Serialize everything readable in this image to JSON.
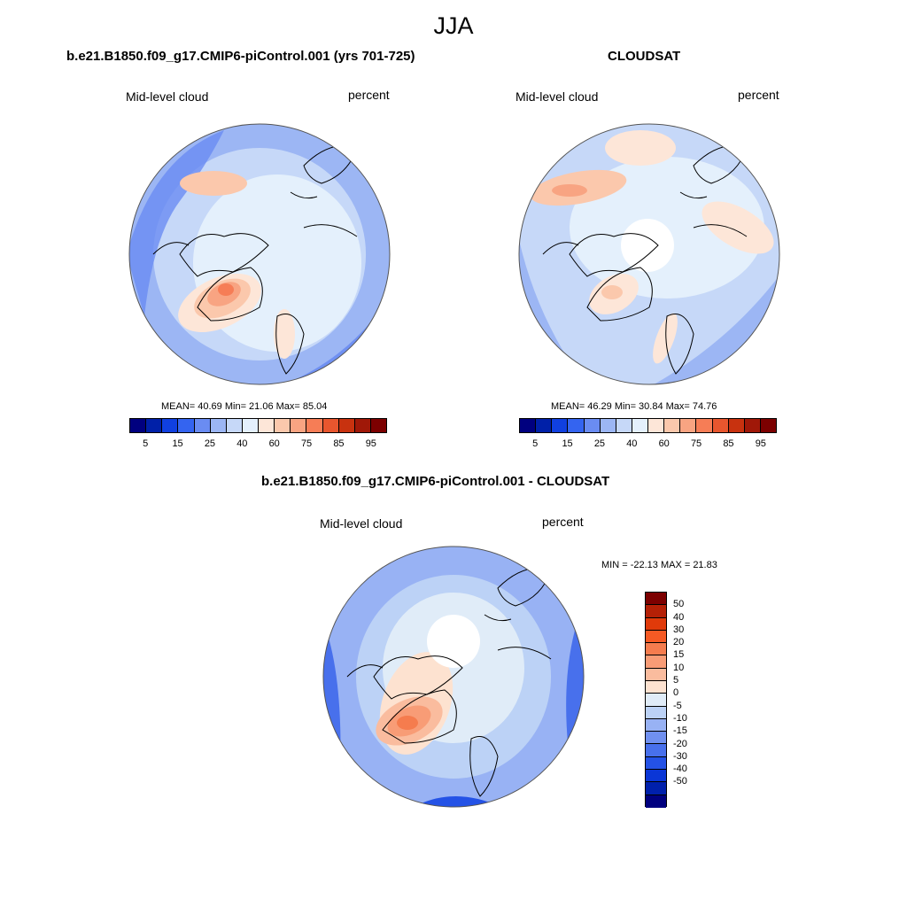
{
  "season": "JJA",
  "units_label": "percent",
  "variable_label": "Mid-level cloud",
  "panels": {
    "model": {
      "title": "b.e21.B1850.f09_g17.CMIP6-piControl.001 (yrs 701-725)",
      "variable": "Mid-level cloud",
      "units": "percent",
      "stats": "MEAN=  40.69  Min=  21.06  Max=  85.04"
    },
    "obs": {
      "title": "CLOUDSAT",
      "variable": "Mid-level cloud",
      "units": "percent",
      "stats": "MEAN=  46.29  Min=  30.84  Max=  74.76"
    },
    "diff": {
      "title": "b.e21.B1850.f09_g17.CMIP6-piControl.001 - CLOUDSAT",
      "variable": "Mid-level cloud",
      "units": "percent",
      "stats": "MIN = -22.13 MAX =  21.83"
    }
  },
  "colorbar_abs": {
    "colors": [
      "#00007f",
      "#0020a8",
      "#1040e0",
      "#3464f0",
      "#6a8cf2",
      "#9cb6f4",
      "#c6d8f8",
      "#e4f0fc",
      "#fde6d8",
      "#fbc8ac",
      "#f8a482",
      "#f67d56",
      "#e8562e",
      "#c8320f",
      "#a01808",
      "#7c0000"
    ],
    "tick_labels": [
      "5",
      "15",
      "25",
      "40",
      "60",
      "75",
      "85",
      "95"
    ]
  },
  "colorbar_diff": {
    "colors": [
      "#7c0000",
      "#b42006",
      "#e03a0a",
      "#f65a24",
      "#f57c4e",
      "#f89c76",
      "#fabc9e",
      "#fde2d0",
      "#e0ecf8",
      "#bcd2f6",
      "#98b2f4",
      "#7090f0",
      "#4870ec",
      "#2452e6",
      "#0a36d6",
      "#0020ac",
      "#00007f"
    ],
    "tick_labels": [
      "50",
      "40",
      "30",
      "20",
      "15",
      "10",
      "5",
      "0",
      "-5",
      "-10",
      "-15",
      "-20",
      "-30",
      "-40",
      "-50"
    ]
  }
}
